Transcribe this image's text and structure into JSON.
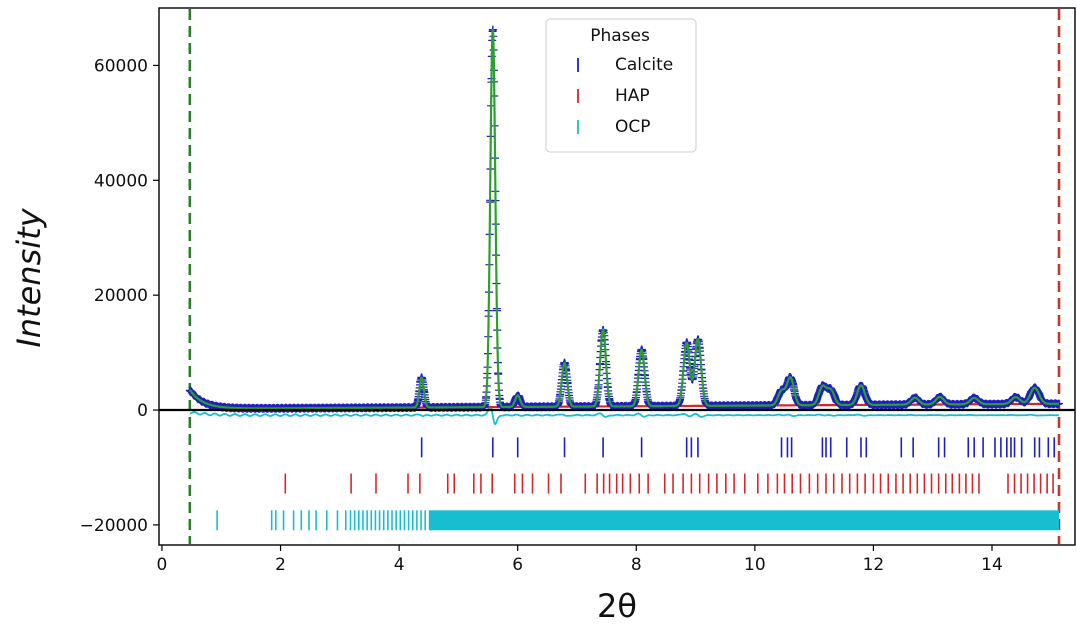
{
  "chart_data": {
    "type": "line",
    "title": "",
    "xlabel": "2θ",
    "ylabel": "Intensity",
    "xlim": [
      -0.05,
      15.4
    ],
    "ylim": [
      -23500,
      70000
    ],
    "xticks": [
      0,
      2,
      4,
      6,
      8,
      10,
      12,
      14
    ],
    "yticks": [
      -20000,
      0,
      20000,
      40000,
      60000
    ],
    "ytick_labels": [
      "−20000",
      "0",
      "20000",
      "40000",
      "60000"
    ],
    "grid": false,
    "zero_line": 0,
    "range_markers": [
      {
        "x": 0.47,
        "color": "#2a7f2a",
        "style": "dashed"
      },
      {
        "x": 15.13,
        "color": "#c0392b",
        "style": "dashed"
      }
    ],
    "colors": {
      "observed": "#1f1fbf",
      "calculated": "#2ca02c",
      "background": "#d62728",
      "difference": "#17becf",
      "zero_line": "#000000",
      "calcite": "#1f1fbf",
      "hap": "#d62728",
      "ocp": "#17becf"
    },
    "peaks": [
      {
        "x": 4.38,
        "h": 5200
      },
      {
        "x": 5.58,
        "h": 65800
      },
      {
        "x": 6.0,
        "h": 2000
      },
      {
        "x": 6.79,
        "h": 7600
      },
      {
        "x": 7.44,
        "h": 13400
      },
      {
        "x": 8.09,
        "h": 9800
      },
      {
        "x": 8.85,
        "h": 11000
      },
      {
        "x": 9.04,
        "h": 11600
      },
      {
        "x": 10.45,
        "h": 2500
      },
      {
        "x": 10.6,
        "h": 4800
      },
      {
        "x": 11.14,
        "h": 3200
      },
      {
        "x": 11.28,
        "h": 2600
      },
      {
        "x": 11.79,
        "h": 3400
      },
      {
        "x": 12.7,
        "h": 1200
      },
      {
        "x": 13.12,
        "h": 1300
      },
      {
        "x": 13.7,
        "h": 1100
      },
      {
        "x": 14.4,
        "h": 1200
      },
      {
        "x": 14.72,
        "h": 2800
      }
    ],
    "legend": {
      "title": "Phases",
      "position": "top-center",
      "entries": [
        {
          "label": "Calcite",
          "color": "#1f1fbf"
        },
        {
          "label": "HAP",
          "color": "#d62728"
        },
        {
          "label": "OCP",
          "color": "#17becf"
        }
      ]
    },
    "reflection_rows": [
      {
        "name": "Calcite",
        "color": "#1f1fbf",
        "y_center": -6500,
        "positions": [
          4.38,
          5.58,
          6.0,
          6.79,
          7.44,
          8.09,
          8.85,
          8.93,
          9.04,
          10.45,
          10.55,
          10.62,
          11.14,
          11.2,
          11.28,
          11.55,
          11.79,
          11.88,
          12.47,
          12.67,
          13.1,
          13.2,
          13.6,
          13.7,
          13.85,
          14.05,
          14.15,
          14.25,
          14.32,
          14.38,
          14.5,
          14.72,
          14.8,
          14.95,
          15.05
        ]
      },
      {
        "name": "HAP",
        "color": "#d62728",
        "y_center": -12800,
        "positions": [
          2.08,
          3.19,
          3.61,
          4.15,
          4.35,
          4.82,
          4.93,
          5.26,
          5.38,
          5.57,
          5.95,
          6.08,
          6.25,
          6.52,
          6.73,
          7.14,
          7.34,
          7.45,
          7.55,
          7.67,
          7.77,
          7.9,
          8.05,
          8.2,
          8.48,
          8.62,
          8.79,
          8.93,
          9.07,
          9.22,
          9.36,
          9.51,
          9.65,
          9.83,
          10.05,
          10.22,
          10.38,
          10.5,
          10.63,
          10.77,
          10.92,
          11.06,
          11.2,
          11.33,
          11.47,
          11.6,
          11.73,
          11.86,
          12.0,
          12.12,
          12.25,
          12.38,
          12.5,
          12.62,
          12.74,
          12.86,
          12.98,
          13.1,
          13.22,
          13.33,
          13.45,
          13.56,
          13.67,
          13.78,
          14.27,
          14.38,
          14.49,
          14.6,
          14.71,
          14.82,
          14.93,
          15.03
        ]
      },
      {
        "name": "OCP",
        "color": "#17becf",
        "y_center": -19200,
        "positions": [
          0.93,
          1.85,
          1.92,
          2.05,
          2.22,
          2.35,
          2.48,
          2.6,
          2.78,
          2.96,
          3.1,
          3.18,
          3.25,
          3.32,
          3.39,
          3.46,
          3.53,
          3.6,
          3.67,
          3.74,
          3.81,
          3.88,
          3.95,
          4.02,
          4.09,
          4.16,
          4.23,
          4.3,
          4.37,
          4.44
        ],
        "dense_band": [
          4.5,
          15.13
        ]
      }
    ]
  }
}
